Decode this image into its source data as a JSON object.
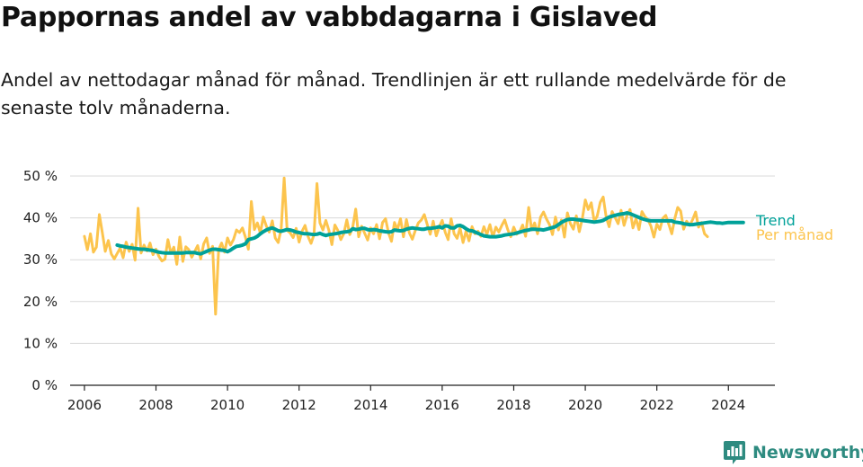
{
  "header": {
    "title": "Pappornas andel av vabbdagarna i Gislaved",
    "subtitle": "Andel av nettodagar månad för månad. Trendlinjen är ett rullande medelvärde för de senaste tolv månaderna."
  },
  "brand": {
    "name": "Newsworthy",
    "icon": "newsworthy-logo-icon",
    "color": "#2e8b80"
  },
  "chart_data": {
    "type": "line",
    "title": "Pappornas andel av vabbdagarna i Gislaved",
    "xlabel": "",
    "ylabel": "",
    "xlim": [
      2005.6,
      2025.3
    ],
    "ylim": [
      0,
      50
    ],
    "x_ticks": [
      2006,
      2008,
      2010,
      2012,
      2014,
      2016,
      2018,
      2020,
      2022,
      2024
    ],
    "y_ticks": [
      {
        "value": 0,
        "label": "0 %"
      },
      {
        "value": 10,
        "label": "10 %"
      },
      {
        "value": 20,
        "label": "20 %"
      },
      {
        "value": 30,
        "label": "30 %"
      },
      {
        "value": 40,
        "label": "40 %"
      },
      {
        "value": 50,
        "label": "50 %"
      }
    ],
    "grid": "horizontal",
    "legend": "inline-right",
    "series": [
      {
        "name": "Per månad",
        "color": "#fcc44d",
        "x_start": 2006.0,
        "step": 0.0833333,
        "values": [
          35.6,
          32.4,
          36.2,
          31.8,
          33.0,
          40.8,
          36.5,
          32.0,
          34.6,
          31.4,
          30.2,
          31.5,
          32.8,
          30.5,
          34.2,
          32.0,
          33.7,
          29.9,
          42.3,
          31.6,
          33.5,
          32.1,
          34.0,
          31.2,
          32.5,
          30.8,
          29.7,
          30.1,
          34.8,
          31.5,
          33.0,
          28.9,
          35.4,
          29.6,
          33.1,
          32.4,
          30.6,
          32.0,
          33.4,
          30.2,
          33.8,
          35.2,
          31.5,
          33.2,
          17.0,
          32.4,
          34.0,
          31.8,
          35.2,
          33.5,
          34.8,
          37.1,
          36.5,
          37.6,
          35.4,
          32.5,
          43.9,
          37.2,
          38.8,
          36.4,
          40.2,
          38.1,
          36.6,
          39.3,
          35.2,
          34.1,
          37.4,
          49.5,
          37.0,
          36.4,
          35.3,
          37.5,
          34.2,
          36.8,
          38.2,
          35.6,
          33.9,
          36.0,
          48.2,
          38.8,
          37.1,
          39.4,
          37.0,
          33.6,
          38.3,
          37.0,
          34.8,
          36.2,
          39.5,
          36.0,
          37.8,
          42.1,
          35.5,
          38.0,
          36.3,
          34.7,
          37.6,
          36.2,
          38.4,
          35.0,
          38.9,
          39.8,
          36.4,
          34.4,
          38.9,
          37.2,
          39.8,
          35.5,
          39.6,
          36.4,
          34.9,
          37.0,
          38.8,
          39.5,
          40.8,
          38.4,
          36.1,
          39.2,
          35.7,
          37.8,
          39.4,
          36.6,
          34.8,
          39.8,
          36.2,
          35.1,
          37.6,
          34.1,
          36.8,
          34.5,
          37.9,
          36.2,
          36.8,
          35.6,
          37.9,
          36.0,
          38.4,
          35.4,
          37.8,
          36.6,
          38.2,
          39.5,
          37.2,
          35.5,
          37.8,
          36.1,
          36.7,
          38.3,
          35.6,
          42.5,
          37.1,
          38.8,
          36.2,
          40.2,
          41.4,
          39.7,
          38.4,
          36.0,
          40.2,
          37.1,
          39.5,
          35.4,
          41.2,
          38.6,
          37.3,
          40.5,
          36.7,
          39.9,
          44.3,
          42.0,
          43.6,
          39.2,
          40.4,
          43.7,
          45.0,
          40.2,
          37.9,
          41.5,
          40.1,
          38.6,
          41.8,
          38.2,
          40.6,
          42.0,
          37.6,
          39.8,
          37.2,
          41.5,
          40.3,
          39.6,
          38.1,
          35.4,
          38.5,
          37.2,
          39.9,
          40.6,
          38.5,
          36.2,
          39.8,
          42.5,
          41.6,
          37.3,
          39.2,
          38.2,
          39.6,
          41.4,
          37.8,
          38.9,
          36.2,
          35.5
        ]
      },
      {
        "name": "Trend",
        "color": "#00a199",
        "x_start": 2006.9167,
        "step": 0.0833333,
        "values": [
          33.5,
          33.3,
          33.2,
          33.0,
          32.9,
          32.8,
          32.7,
          32.6,
          32.5,
          32.5,
          32.4,
          32.3,
          32.2,
          32.0,
          31.8,
          31.7,
          31.6,
          31.6,
          31.6,
          31.6,
          31.6,
          31.6,
          31.6,
          31.7,
          31.7,
          31.7,
          31.7,
          31.5,
          31.4,
          31.7,
          32.0,
          32.3,
          32.5,
          32.5,
          32.4,
          32.3,
          32.2,
          31.9,
          32.3,
          32.8,
          33.2,
          33.3,
          33.5,
          33.8,
          34.8,
          35.0,
          35.2,
          35.6,
          36.2,
          36.7,
          37.1,
          37.4,
          37.6,
          37.3,
          36.9,
          36.8,
          37.0,
          37.2,
          37.1,
          36.9,
          36.6,
          36.5,
          36.3,
          36.2,
          36.2,
          36.1,
          36.0,
          36.1,
          36.3,
          36.0,
          35.8,
          36.0,
          36.1,
          36.2,
          36.3,
          36.5,
          36.6,
          36.7,
          36.8,
          37.4,
          37.2,
          37.3,
          37.5,
          37.5,
          37.2,
          37.1,
          37.2,
          37.1,
          36.9,
          36.8,
          36.7,
          36.6,
          36.7,
          37.1,
          37.0,
          36.9,
          37.0,
          37.3,
          37.5,
          37.6,
          37.5,
          37.4,
          37.3,
          37.3,
          37.5,
          37.5,
          37.6,
          37.7,
          37.9,
          37.6,
          38.1,
          38.0,
          37.6,
          37.6,
          38.1,
          38.2,
          37.9,
          37.4,
          37.0,
          36.9,
          36.6,
          36.3,
          36.0,
          35.7,
          35.6,
          35.5,
          35.5,
          35.5,
          35.6,
          35.7,
          35.9,
          36.0,
          36.1,
          36.2,
          36.4,
          36.6,
          36.8,
          37.0,
          37.1,
          37.3,
          37.3,
          37.2,
          37.2,
          37.1,
          37.3,
          37.5,
          37.7,
          37.9,
          38.4,
          38.9,
          39.3,
          39.6,
          39.7,
          39.7,
          39.6,
          39.5,
          39.4,
          39.3,
          39.2,
          39.1,
          39.0,
          39.1,
          39.2,
          39.4,
          39.8,
          40.2,
          40.4,
          40.6,
          40.8,
          40.9,
          41.0,
          41.2,
          41.0,
          40.7,
          40.4,
          40.1,
          39.8,
          39.6,
          39.4,
          39.3,
          39.3,
          39.3,
          39.3,
          39.3,
          39.3,
          39.3,
          39.3,
          39.0,
          38.9,
          38.8,
          38.6,
          38.5,
          38.4,
          38.4,
          38.5,
          38.6,
          38.7,
          38.8,
          38.9,
          39.0,
          38.9,
          38.8,
          38.8,
          38.7,
          38.8,
          38.9,
          38.9,
          38.9,
          38.9,
          38.9,
          38.9
        ]
      }
    ]
  }
}
